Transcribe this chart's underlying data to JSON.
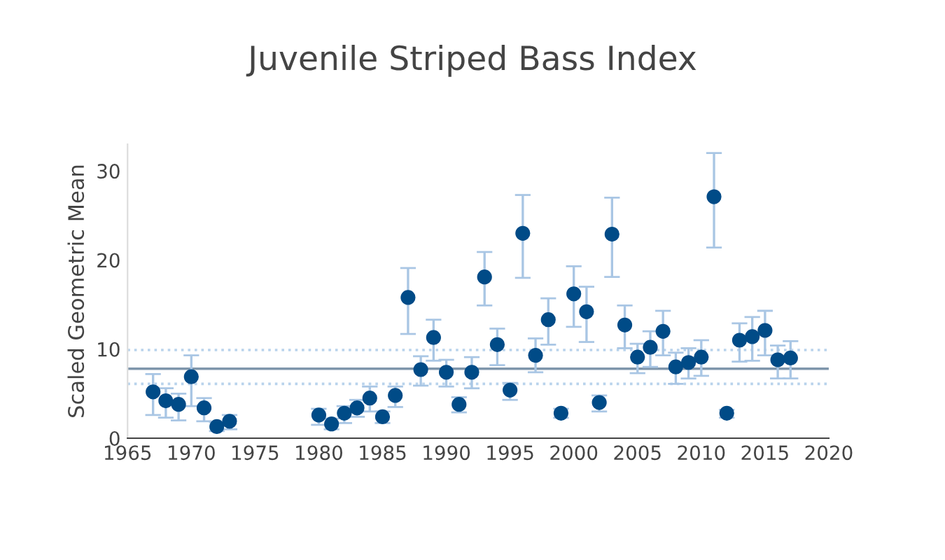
{
  "chart_data": {
    "type": "scatter",
    "title": "Juvenile Striped Bass Index",
    "ylabel": "Scaled Geometric Mean",
    "x": [
      1967,
      1968,
      1969,
      1970,
      1971,
      1972,
      1973,
      1980,
      1981,
      1982,
      1983,
      1984,
      1985,
      1986,
      1987,
      1988,
      1989,
      1990,
      1991,
      1992,
      1993,
      1994,
      1995,
      1996,
      1997,
      1998,
      1999,
      2000,
      2001,
      2002,
      2003,
      2004,
      2005,
      2006,
      2007,
      2008,
      2009,
      2010,
      2011,
      2012,
      2013,
      2014,
      2015,
      2016,
      2017
    ],
    "series": [
      {
        "color": "#004b87",
        "values": [
          5.2,
          4.2,
          3.8,
          6.9,
          3.4,
          1.3,
          1.9,
          2.6,
          1.6,
          2.8,
          3.4,
          4.5,
          2.4,
          4.8,
          15.8,
          7.7,
          11.3,
          7.4,
          3.8,
          7.4,
          18.1,
          10.5,
          5.4,
          23.0,
          9.3,
          13.3,
          2.8,
          16.2,
          14.2,
          4.0,
          22.9,
          12.7,
          9.1,
          10.2,
          12.0,
          8.0,
          8.5,
          9.1,
          27.1,
          2.8,
          11.0,
          11.4,
          12.1,
          8.8,
          9.0
        ],
        "errors": [
          [
            2.6,
            7.2
          ],
          [
            2.3,
            5.6
          ],
          [
            2.0,
            5.0
          ],
          [
            3.6,
            9.3
          ],
          [
            1.9,
            4.5
          ],
          [
            0.8,
            1.8
          ],
          [
            1.0,
            2.6
          ],
          [
            1.5,
            3.3
          ],
          [
            1.0,
            2.2
          ],
          [
            1.7,
            3.6
          ],
          [
            2.4,
            4.3
          ],
          [
            3.0,
            5.8
          ],
          [
            1.7,
            3.0
          ],
          [
            3.5,
            5.8
          ],
          [
            11.7,
            19.1
          ],
          [
            5.9,
            9.2
          ],
          [
            8.7,
            13.3
          ],
          [
            5.8,
            8.8
          ],
          [
            2.9,
            4.6
          ],
          [
            5.6,
            9.1
          ],
          [
            14.9,
            20.9
          ],
          [
            8.2,
            12.3
          ],
          [
            4.3,
            6.2
          ],
          [
            18.0,
            27.3
          ],
          [
            7.4,
            11.2
          ],
          [
            10.5,
            15.7
          ],
          [
            2.3,
            3.3
          ],
          [
            12.5,
            19.3
          ],
          [
            10.8,
            17.0
          ],
          [
            3.0,
            4.8
          ],
          [
            18.1,
            27.0
          ],
          [
            10.1,
            14.9
          ],
          [
            7.3,
            10.6
          ],
          [
            8.0,
            12.0
          ],
          [
            9.3,
            14.3
          ],
          [
            6.1,
            9.6
          ],
          [
            6.7,
            10.1
          ],
          [
            7.0,
            11.0
          ],
          [
            21.4,
            32.0
          ],
          [
            2.3,
            3.2
          ],
          [
            8.6,
            12.9
          ],
          [
            8.7,
            13.6
          ],
          [
            9.3,
            14.3
          ],
          [
            6.7,
            10.4
          ],
          [
            6.7,
            10.9
          ]
        ]
      }
    ],
    "ref_lines": [
      {
        "axis": "y",
        "value": 7.8,
        "color": "#7f96ab",
        "line_style": "solid"
      },
      {
        "axis": "y",
        "value": 9.9,
        "color": "#b9d3ec",
        "line_style": "dotted"
      },
      {
        "axis": "y",
        "value": 6.1,
        "color": "#b9d3ec",
        "line_style": "dotted"
      }
    ],
    "xlim": [
      1965,
      2020
    ],
    "xticks": [
      1965,
      1970,
      1975,
      1980,
      1985,
      1990,
      1995,
      2000,
      2005,
      2010,
      2015,
      2020
    ],
    "ylim": [
      0,
      33
    ],
    "yticks": [
      0,
      10,
      20,
      30
    ],
    "marker": "circle",
    "grid": false,
    "legend": false
  }
}
